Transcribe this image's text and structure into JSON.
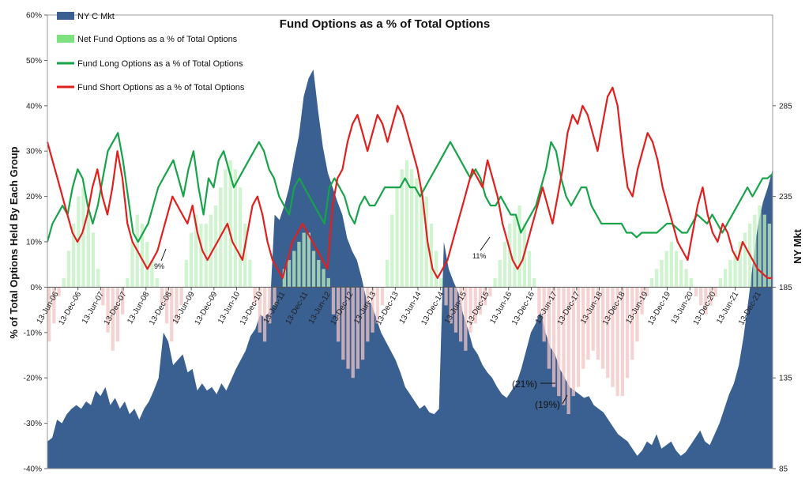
{
  "chart_data": {
    "type": "line",
    "title": "Fund Options as a % of Total Options",
    "ylabel": "% of Total Options Held By Each Group",
    "y2label": "NY Mkt",
    "ylim": [
      -40,
      60
    ],
    "y2lim": [
      85,
      335
    ],
    "y_ticks": [
      "60%",
      "50%",
      "40%",
      "30%",
      "20%",
      "10%",
      "0%",
      "-10%",
      "-20%",
      "-30%",
      "-40%"
    ],
    "y2_ticks": [
      "285",
      "235",
      "185",
      "135",
      "85"
    ],
    "x_tick_labels": [
      "13-Jun-06",
      "13-Dec-06",
      "13-Jun-07",
      "13-Dec-07",
      "13-Jun-08",
      "13-Dec-08",
      "13-Jun-09",
      "13-Dec-09",
      "13-Jun-10",
      "13-Dec-10",
      "13-Jun-11",
      "13-Dec-11",
      "13-Jun-12",
      "13-Dec-12",
      "13-Jun-13",
      "13-Dec-13",
      "13-Jun-14",
      "13-Dec-14",
      "13-Jun-15",
      "13-Dec-15",
      "13-Jun-16",
      "13-Dec-16",
      "13-Jun-17",
      "13-Dec-17",
      "13-Jun-18",
      "13-Dec-18",
      "13-Jun-19",
      "13-Dec-19",
      "13-Jun-20",
      "13-Dec-20",
      "13-Jun-21",
      "13-Dec-21"
    ],
    "legend_position": "top-left",
    "series": [
      {
        "name": "NY C Mkt",
        "kind": "area",
        "axis": "right",
        "color": "#3a5f91",
        "values": [
          100,
          102,
          112,
          110,
          115,
          118,
          120,
          118,
          122,
          120,
          128,
          125,
          130,
          120,
          124,
          118,
          122,
          115,
          118,
          112,
          118,
          122,
          128,
          135,
          160,
          155,
          142,
          145,
          148,
          138,
          140,
          128,
          132,
          128,
          130,
          126,
          132,
          128,
          134,
          140,
          145,
          150,
          158,
          162,
          170,
          168,
          172,
          225,
          222,
          230,
          240,
          255,
          268,
          290,
          300,
          305,
          282,
          262,
          248,
          240,
          232,
          225,
          212,
          205,
          200,
          190,
          178,
          176,
          168,
          160,
          155,
          150,
          145,
          138,
          130,
          126,
          122,
          118,
          120,
          116,
          115,
          118,
          210,
          195,
          188,
          182,
          170,
          162,
          152,
          148,
          142,
          138,
          135,
          130,
          126,
          124,
          128,
          132,
          140,
          150,
          160,
          165,
          172,
          160,
          152,
          148,
          140,
          135,
          130,
          128,
          126,
          124,
          125,
          120,
          118,
          116,
          112,
          108,
          104,
          102,
          100,
          96,
          92,
          95,
          100,
          98,
          104,
          96,
          98,
          100,
          95,
          92,
          94,
          98,
          102,
          106,
          100,
          98,
          104,
          110,
          118,
          126,
          132,
          142,
          158,
          178,
          200,
          220,
          232,
          240,
          250
        ]
      },
      {
        "name": "Net Fund Options as a % of Total Options",
        "kind": "bar",
        "axis": "left",
        "color": "#7ee07e",
        "values": [
          -12,
          -8,
          -2,
          2,
          8,
          14,
          20,
          22,
          18,
          12,
          4,
          -4,
          -10,
          -14,
          -12,
          -6,
          2,
          10,
          16,
          14,
          10,
          6,
          2,
          -4,
          -8,
          -12,
          -8,
          -4,
          6,
          12,
          16,
          14,
          14,
          16,
          18,
          22,
          26,
          28,
          26,
          22,
          14,
          6,
          -4,
          -10,
          -12,
          -8,
          -4,
          0,
          4,
          6,
          8,
          10,
          12,
          12,
          8,
          6,
          4,
          2,
          -6,
          -12,
          -16,
          -18,
          -20,
          -18,
          -16,
          -12,
          -10,
          -8,
          -4,
          6,
          16,
          22,
          26,
          28,
          26,
          24,
          22,
          20,
          14,
          8,
          2,
          -4,
          -8,
          -10,
          -12,
          -14,
          -10,
          -8,
          -6,
          -4,
          -2,
          2,
          6,
          10,
          14,
          16,
          18,
          14,
          8,
          2,
          -6,
          -12,
          -18,
          -22,
          -24,
          -26,
          -28,
          -24,
          -22,
          -18,
          -16,
          -14,
          -16,
          -18,
          -20,
          -22,
          -24,
          -24,
          -20,
          -16,
          -12,
          -6,
          -2,
          2,
          4,
          6,
          8,
          10,
          8,
          6,
          4,
          2,
          -2,
          -4,
          -6,
          -4,
          -2,
          2,
          4,
          6,
          8,
          10,
          12,
          14,
          16,
          18,
          16,
          14
        ]
      },
      {
        "name": "Fund Long Options as a % of Total Options",
        "kind": "line",
        "axis": "left",
        "color": "#17a34a",
        "values": [
          10,
          14,
          16,
          18,
          16,
          22,
          26,
          24,
          18,
          14,
          18,
          24,
          30,
          32,
          34,
          28,
          20,
          12,
          10,
          12,
          14,
          18,
          22,
          24,
          26,
          28,
          24,
          20,
          26,
          30,
          22,
          16,
          24,
          22,
          28,
          30,
          26,
          22,
          24,
          26,
          28,
          30,
          32,
          30,
          26,
          24,
          20,
          18,
          16,
          22,
          24,
          22,
          20,
          18,
          16,
          14,
          22,
          24,
          22,
          20,
          16,
          14,
          18,
          20,
          18,
          18,
          20,
          22,
          22,
          22,
          22,
          24,
          22,
          22,
          20,
          22,
          24,
          26,
          28,
          30,
          32,
          30,
          28,
          26,
          24,
          26,
          24,
          20,
          18,
          18,
          20,
          18,
          16,
          16,
          12,
          14,
          16,
          18,
          22,
          26,
          32,
          30,
          24,
          20,
          18,
          20,
          22,
          22,
          18,
          16,
          14,
          14,
          14,
          14,
          14,
          12,
          12,
          11,
          12,
          12,
          12,
          12,
          13,
          14,
          14,
          13,
          12,
          12,
          14,
          16,
          15,
          14,
          16,
          14,
          12,
          14,
          16,
          18,
          20,
          22,
          20,
          22,
          24,
          24,
          25
        ]
      },
      {
        "name": "Fund Short Options as a % of Total Options",
        "kind": "line",
        "axis": "left",
        "color": "#e0201e",
        "values": [
          32,
          28,
          24,
          20,
          16,
          12,
          10,
          12,
          16,
          22,
          26,
          20,
          16,
          22,
          30,
          24,
          14,
          10,
          8,
          6,
          4,
          6,
          8,
          12,
          16,
          20,
          18,
          16,
          14,
          18,
          12,
          8,
          6,
          8,
          10,
          12,
          14,
          10,
          8,
          6,
          12,
          18,
          20,
          16,
          10,
          6,
          4,
          2,
          6,
          10,
          12,
          14,
          12,
          10,
          8,
          6,
          4,
          18,
          24,
          26,
          32,
          36,
          38,
          34,
          30,
          34,
          38,
          36,
          32,
          36,
          40,
          38,
          34,
          30,
          26,
          20,
          10,
          4,
          2,
          4,
          6,
          10,
          14,
          18,
          22,
          26,
          24,
          22,
          28,
          24,
          20,
          14,
          10,
          6,
          4,
          6,
          10,
          14,
          18,
          22,
          18,
          14,
          20,
          26,
          34,
          38,
          36,
          40,
          38,
          34,
          30,
          36,
          42,
          44,
          40,
          30,
          22,
          20,
          26,
          30,
          34,
          32,
          28,
          22,
          18,
          14,
          10,
          8,
          6,
          12,
          18,
          22,
          16,
          12,
          10,
          14,
          12,
          8,
          6,
          10,
          8,
          6,
          4,
          3,
          2,
          2
        ]
      }
    ],
    "annotations": [
      {
        "label": "9%",
        "size": "small"
      },
      {
        "label": "11%",
        "size": "small"
      },
      {
        "label": "(21%)",
        "size": "big"
      },
      {
        "label": "(19%)",
        "size": "big"
      }
    ]
  }
}
